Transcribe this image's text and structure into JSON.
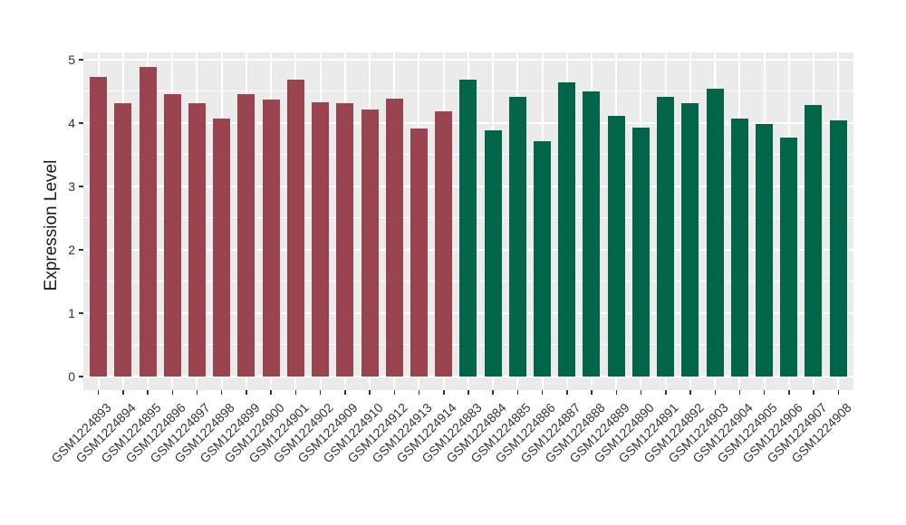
{
  "chart_data": {
    "type": "bar",
    "title": "",
    "xlabel": "",
    "ylabel": "Expression Level",
    "ylim": [
      -0.25,
      5.1
    ],
    "yticks": [
      0,
      1,
      2,
      3,
      4,
      5
    ],
    "yticks_minor": [
      0.5,
      1.5,
      2.5,
      3.5,
      4.5
    ],
    "grid": "white major+minor horizontal and major vertical gridlines on gray panel, ggplot style",
    "legend_position": "none",
    "categories": [
      "GSM1224893",
      "GSM1224894",
      "GSM1224895",
      "GSM1224896",
      "GSM1224897",
      "GSM1224898",
      "GSM1224899",
      "GSM1224900",
      "GSM1224901",
      "GSM1224902",
      "GSM1224909",
      "GSM1224910",
      "GSM1224912",
      "GSM1224913",
      "GSM1224914",
      "GSM1224883",
      "GSM1224884",
      "GSM1224885",
      "GSM1224886",
      "GSM1224887",
      "GSM1224888",
      "GSM1224889",
      "GSM1224890",
      "GSM1224891",
      "GSM1224892",
      "GSM1224903",
      "GSM1224904",
      "GSM1224905",
      "GSM1224906",
      "GSM1224907",
      "GSM1224908"
    ],
    "values": [
      4.73,
      4.32,
      4.88,
      4.46,
      4.31,
      4.07,
      4.46,
      4.37,
      4.69,
      4.33,
      4.32,
      4.21,
      4.38,
      3.92,
      4.18,
      4.69,
      3.88,
      4.42,
      3.71,
      4.65,
      4.5,
      4.11,
      3.93,
      4.42,
      4.32,
      4.55,
      4.07,
      3.99,
      3.77,
      4.29,
      4.04
    ],
    "groups": [
      "group1",
      "group1",
      "group1",
      "group1",
      "group1",
      "group1",
      "group1",
      "group1",
      "group1",
      "group1",
      "group1",
      "group1",
      "group1",
      "group1",
      "group1",
      "group2",
      "group2",
      "group2",
      "group2",
      "group2",
      "group2",
      "group2",
      "group2",
      "group2",
      "group2",
      "group2",
      "group2",
      "group2",
      "group2",
      "group2",
      "group2"
    ]
  },
  "colors": {
    "group1": "#9A4450",
    "group2": "#016649",
    "panel_bg": "#EBEBEB",
    "grid": "#FFFFFF",
    "axis_text": "#333333",
    "axis_title": "#1A1A1A",
    "tick_mark": "#333333",
    "page_bg": "#FFFFFF"
  }
}
